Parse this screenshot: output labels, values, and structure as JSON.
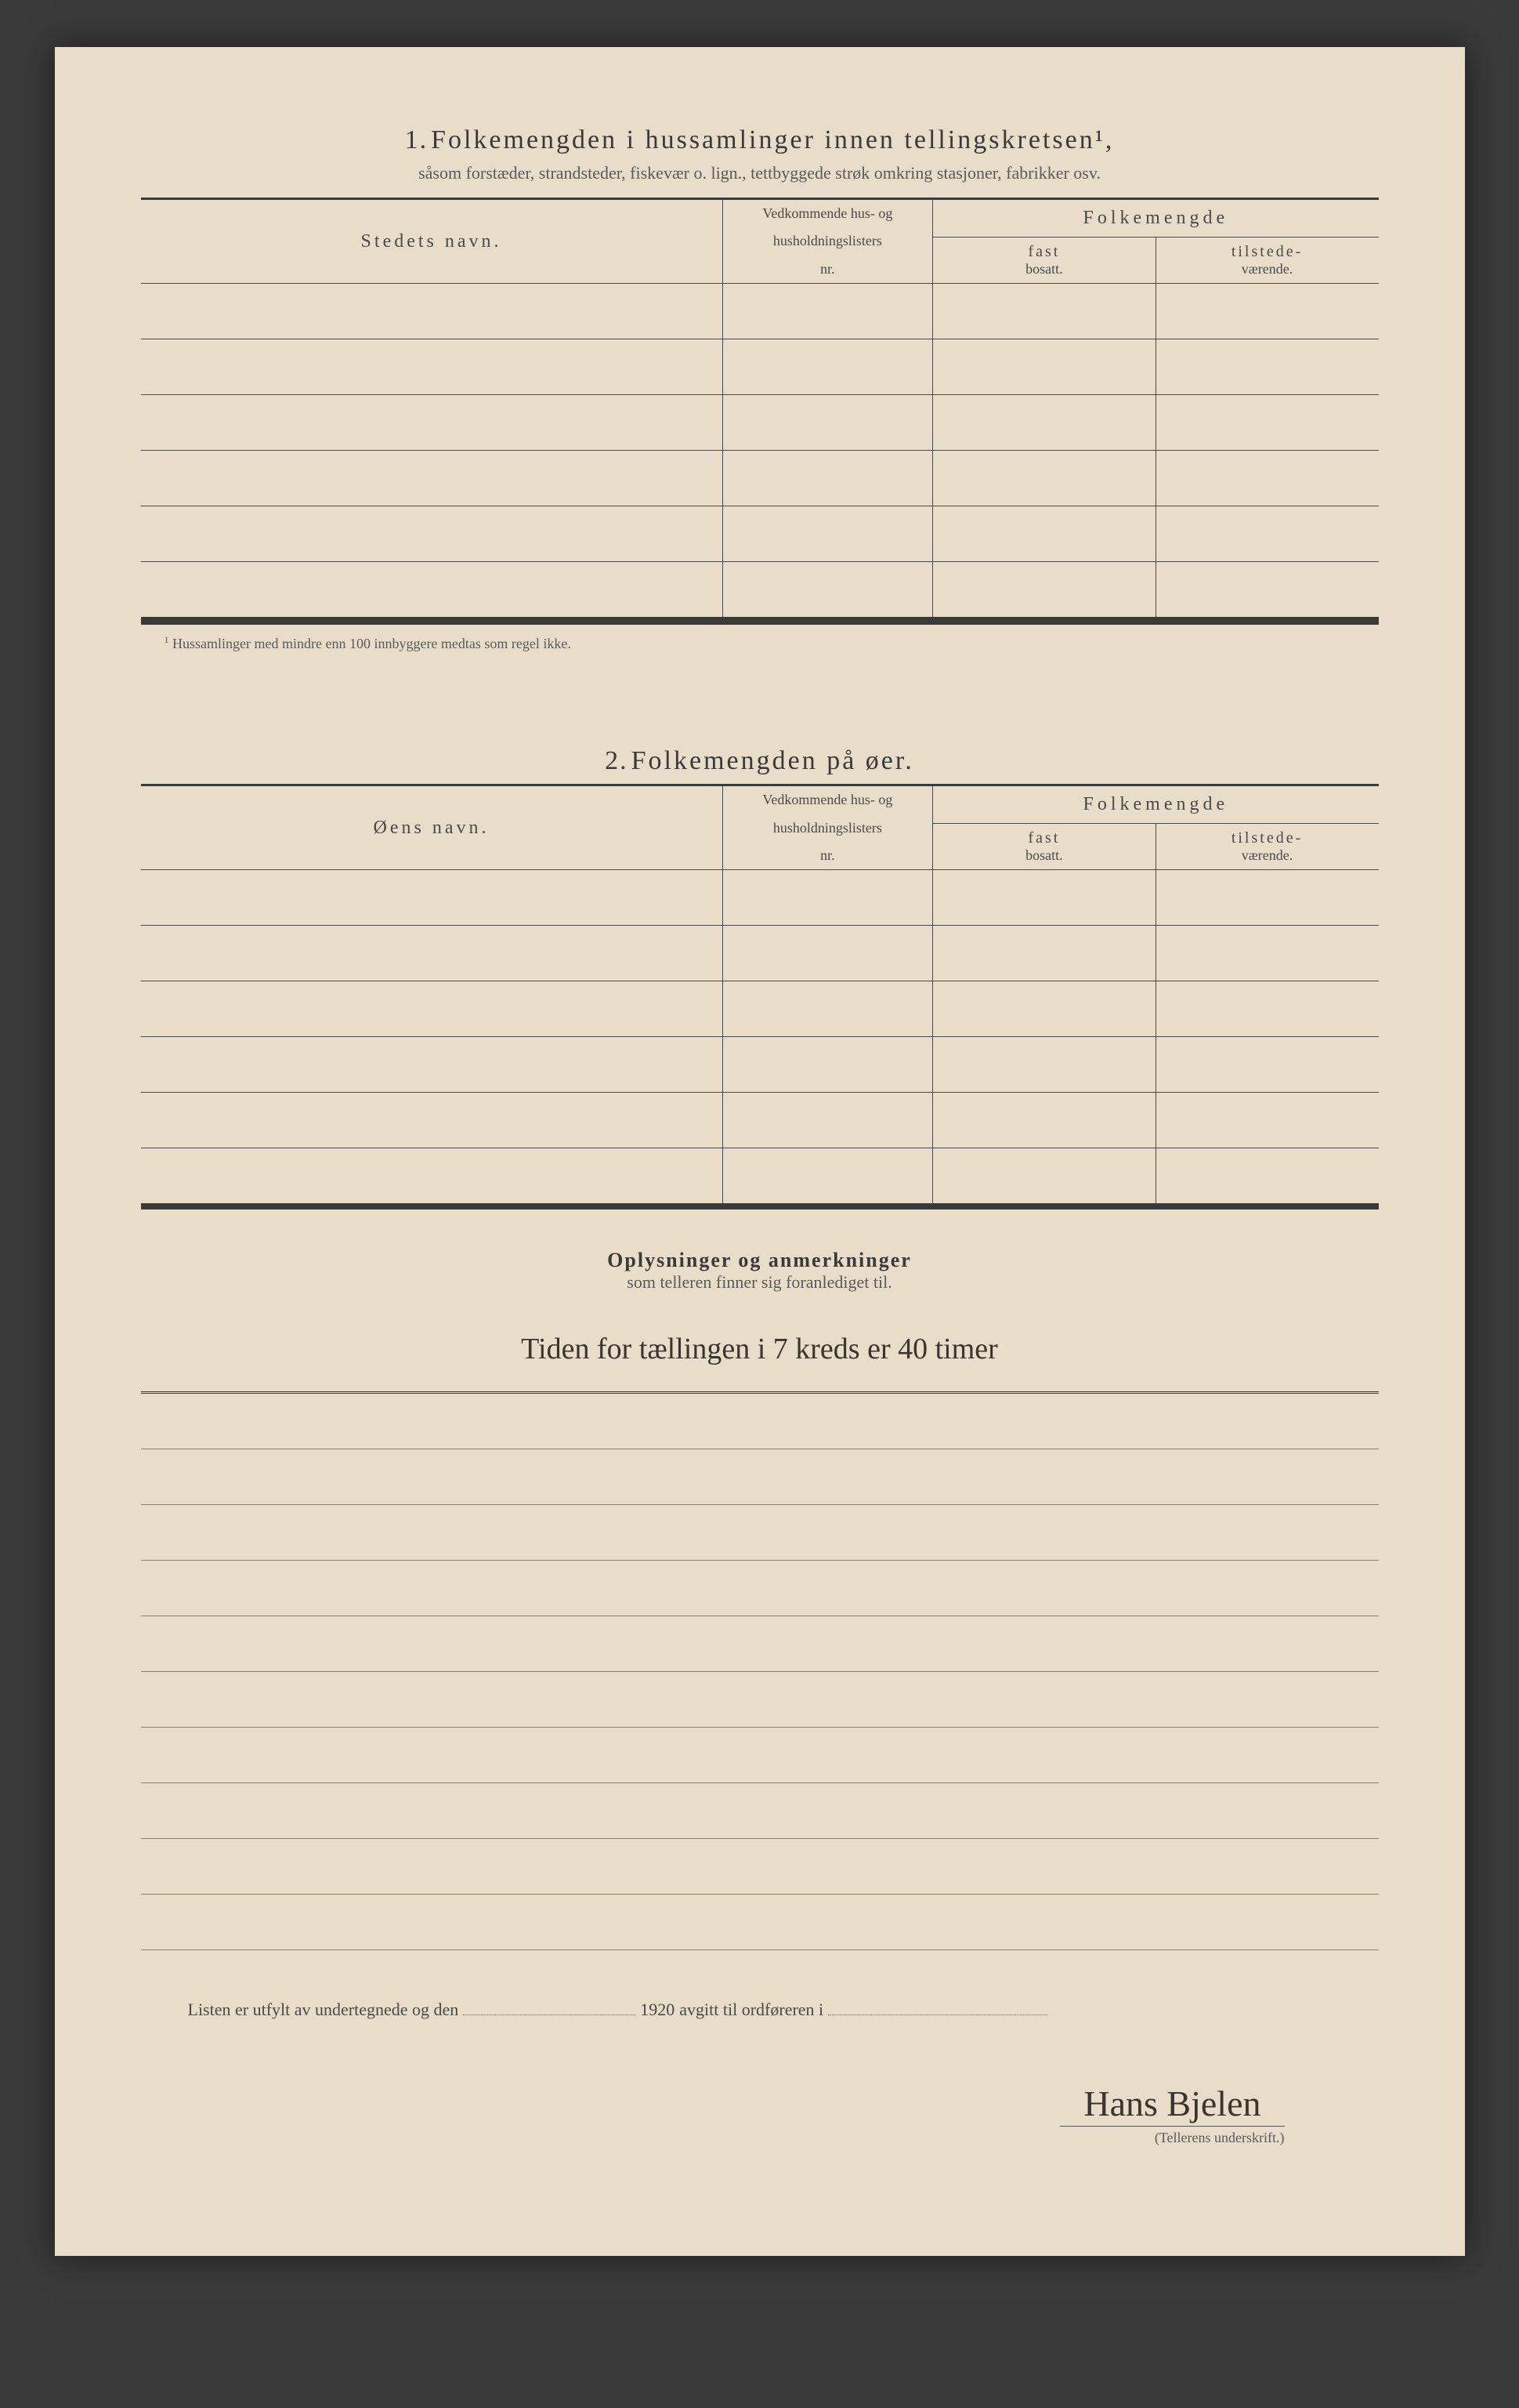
{
  "section1": {
    "number": "1.",
    "title": "Folkemengden i hussamlinger innen tellingskretsen¹,",
    "subtitle": "såsom forstæder, strandsteder, fiskevær o. lign., tettbyggede strøk omkring stasjoner, fabrikker osv.",
    "col_name": "Stedets navn.",
    "col_nr_line1": "Vedkommende hus- og",
    "col_nr_line2": "husholdningslisters",
    "col_nr_line3": "nr.",
    "col_pop": "Folkemengde",
    "col_fast1": "fast",
    "col_fast2": "bosatt.",
    "col_til1": "tilstede-",
    "col_til2": "værende.",
    "footnote": "Hussamlinger med mindre enn 100 innbyggere medtas som regel ikke.",
    "row_count": 6
  },
  "section2": {
    "number": "2.",
    "title": "Folkemengden på øer.",
    "col_name": "Øens navn.",
    "col_nr_line1": "Vedkommende hus- og",
    "col_nr_line2": "husholdningslisters",
    "col_nr_line3": "nr.",
    "col_pop": "Folkemengde",
    "col_fast1": "fast",
    "col_fast2": "bosatt.",
    "col_til1": "tilstede-",
    "col_til2": "værende.",
    "row_count": 6
  },
  "remarks": {
    "title": "Oplysninger og anmerkninger",
    "subtitle": "som telleren finner sig foranlediget til.",
    "handwritten": "Tiden for tællingen i 7 kreds er 40 timer",
    "ruled_lines": 10
  },
  "closing": {
    "part1": "Listen er utfylt av undertegnede og den",
    "year": "1920",
    "part2": "avgitt til ordføreren i"
  },
  "signature": {
    "name": "Hans Bjelen",
    "caption": "(Tellerens underskrift.)"
  },
  "colors": {
    "paper": "#e8ddc8",
    "ink": "#3a3a3a",
    "rule": "#8a8070",
    "background": "#3a3a3a"
  }
}
